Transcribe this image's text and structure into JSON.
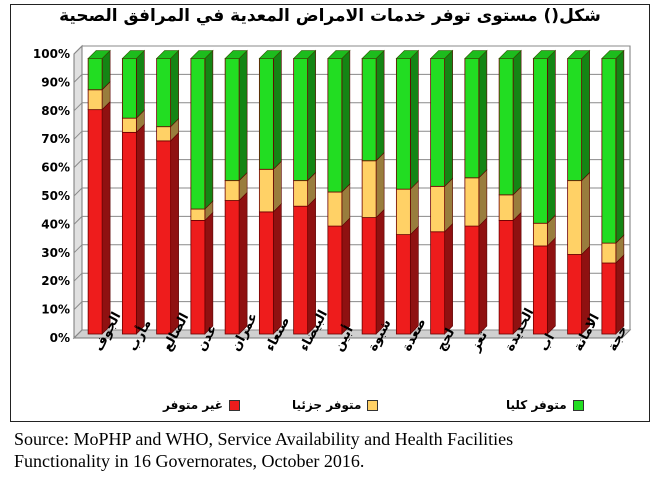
{
  "chart_data": {
    "type": "bar",
    "stacked": true,
    "title": "شكل() مستوى توفر خدمات الامراض المعدية في المرافق الصحية",
    "categories": [
      "الجوف",
      "مأرب",
      "الضالع",
      "عدن",
      "عمران",
      "صنعاء",
      "البيضاء",
      "أبين",
      "شبوة",
      "صعدة",
      "لحج",
      "تعز",
      "الحديدة",
      "اب",
      "الامانة",
      "حجة"
    ],
    "series": [
      {
        "name": "غير متوفر",
        "color": "#ee1c1c",
        "values": [
          79,
          71,
          68,
          40,
          47,
          43,
          45,
          38,
          41,
          35,
          36,
          38,
          40,
          31,
          28,
          25
        ]
      },
      {
        "name": "متوفر جزئيا",
        "color": "#ffd166",
        "values": [
          7,
          5,
          5,
          4,
          7,
          15,
          9,
          12,
          20,
          16,
          16,
          17,
          9,
          8,
          26,
          7
        ]
      },
      {
        "name": "متوفر كليا",
        "color": "#22dd22",
        "values": [
          11,
          21,
          24,
          53,
          43,
          39,
          43,
          47,
          36,
          46,
          45,
          42,
          48,
          58,
          43,
          65
        ]
      }
    ],
    "yticks": [
      "0%",
      "10%",
      "20%",
      "30%",
      "40%",
      "50%",
      "60%",
      "70%",
      "80%",
      "90%",
      "100%"
    ],
    "ylim": [
      0,
      100
    ]
  },
  "source": {
    "line1": "Source: MoPHP and WHO, Service Availability and Health Facilities",
    "line2": "Functionality in 16 Governorates, October 2016."
  }
}
